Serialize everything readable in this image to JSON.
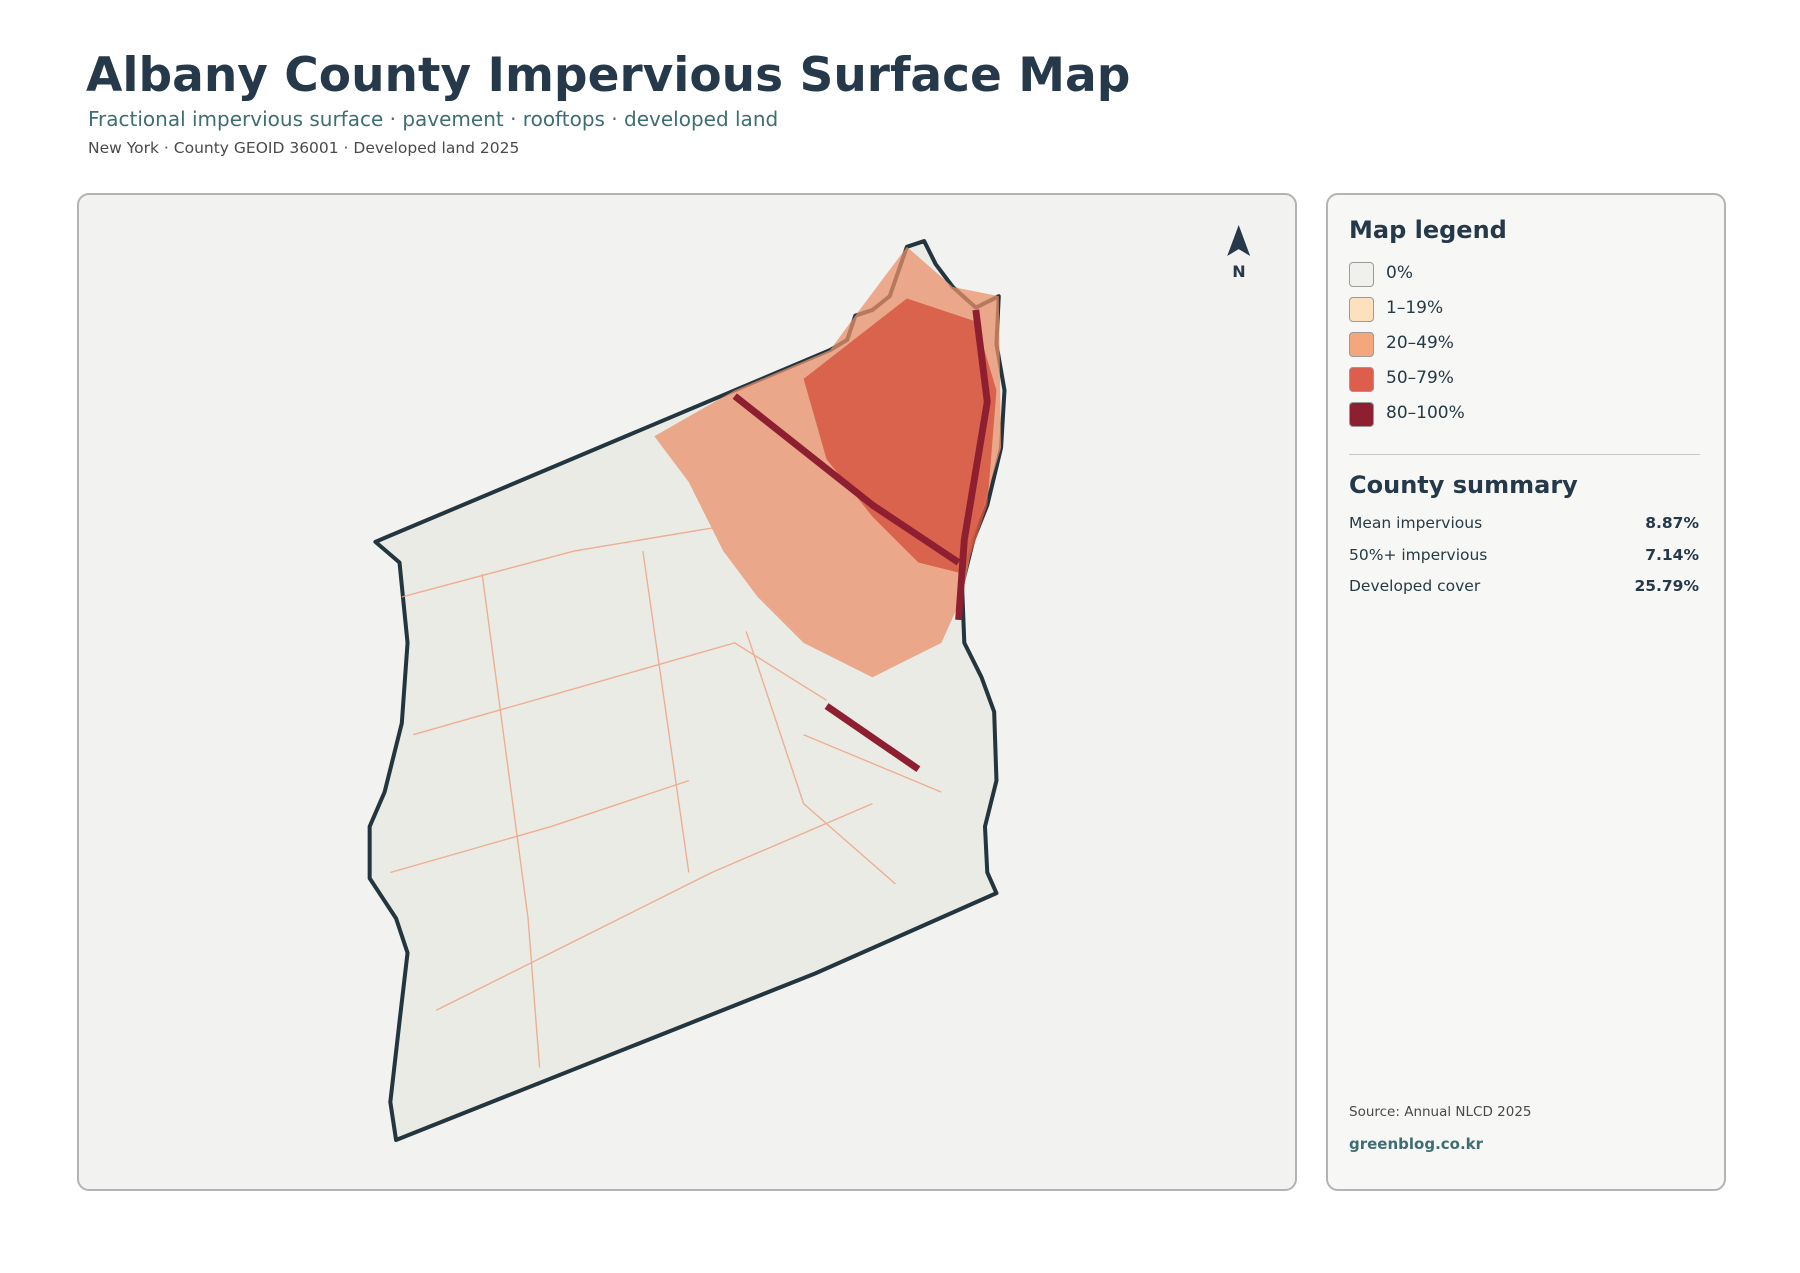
{
  "header": {
    "title": "Albany County Impervious Surface Map",
    "subtitle": "Fractional impervious surface · pavement · rooftops · developed land",
    "meta": "New York · County GEOID 36001 · Developed land 2025"
  },
  "map": {
    "north_label": "N"
  },
  "legend": {
    "title": "Map legend",
    "items": [
      {
        "label": "0%"
      },
      {
        "label": "1–19%"
      },
      {
        "label": "20–49%"
      },
      {
        "label": "50–79%"
      },
      {
        "label": "80–100%"
      }
    ]
  },
  "summary": {
    "title": "County summary",
    "rows": [
      {
        "label": "Mean impervious",
        "value": "8.87%"
      },
      {
        "label": "50%+ impervious",
        "value": "7.14%"
      },
      {
        "label": "Developed cover",
        "value": "25.79%"
      }
    ]
  },
  "footer": {
    "source": "Source: Annual NLCD 2025",
    "site": "greenblog.co.kr"
  }
}
